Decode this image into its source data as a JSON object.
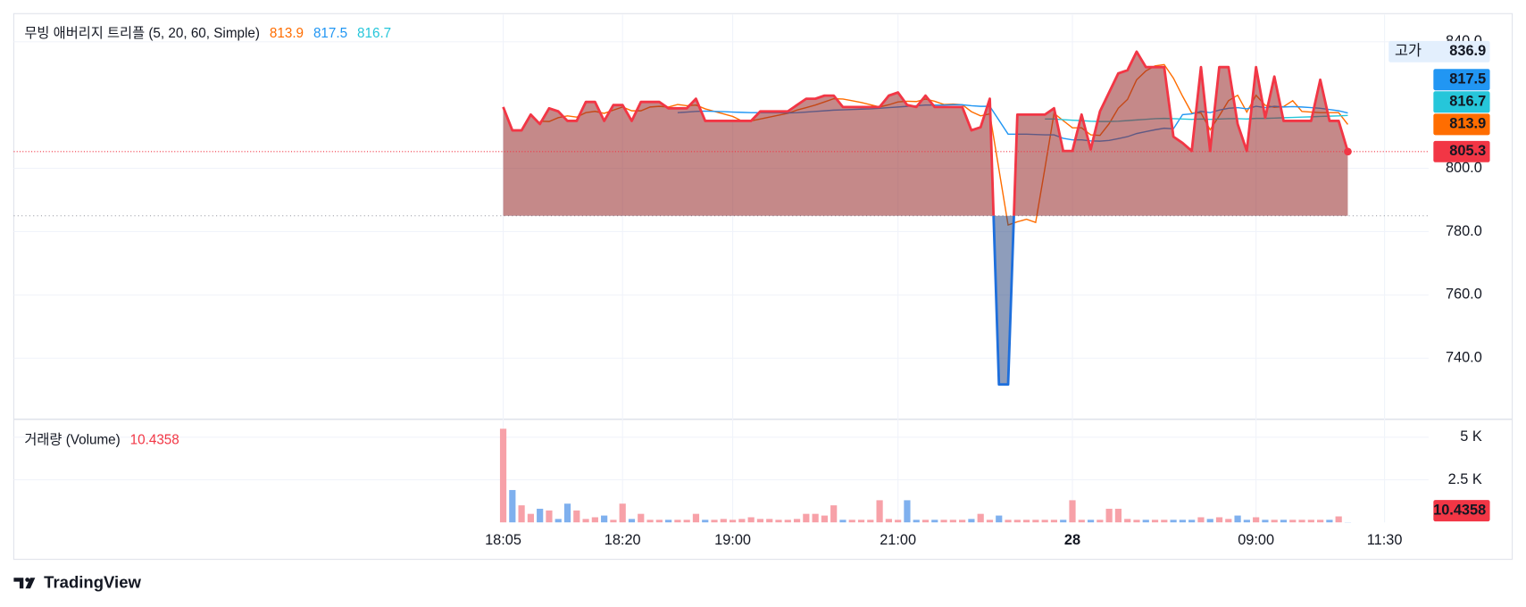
{
  "watermark": "TradingView",
  "chart_data": [
    {
      "type": "baseline",
      "title": "무빙 애버리지 트리플 (5, 20, 60, Simple)",
      "categories": [
        "18:05",
        null,
        null,
        null,
        null,
        null,
        null,
        null,
        null,
        null,
        null,
        null,
        null,
        "18:20",
        null,
        null,
        null,
        null,
        null,
        null,
        null,
        null,
        null,
        null,
        null,
        "19:00",
        null,
        null,
        null,
        null,
        null,
        null,
        null,
        null,
        null,
        null,
        null,
        null,
        null,
        null,
        null,
        null,
        null,
        "21:00",
        null,
        null,
        null,
        null,
        null,
        null,
        null,
        null,
        null,
        null,
        null,
        null,
        null,
        null,
        null,
        null,
        null,
        null,
        "28",
        null,
        null,
        null,
        null,
        null,
        null,
        null,
        null,
        null,
        null,
        null,
        null,
        null,
        null,
        null,
        null,
        null,
        null,
        null,
        "09:00",
        null,
        null,
        null,
        null,
        null,
        null,
        null,
        null,
        null,
        null,
        null,
        null,
        null,
        "11:30"
      ],
      "values": [
        819.4,
        812,
        812,
        817,
        814,
        819,
        818,
        815,
        815,
        821,
        821,
        815,
        820,
        820,
        815,
        821,
        821,
        821,
        819,
        819,
        819,
        822,
        815,
        815,
        815,
        815,
        815,
        815,
        818,
        818,
        818,
        818,
        820,
        822,
        822,
        823,
        823,
        819.4,
        819.4,
        819.4,
        819.4,
        819.4,
        823,
        824,
        820,
        819.4,
        823,
        819.4,
        819.4,
        819.4,
        819.4,
        812,
        813,
        822,
        731.7,
        731.7,
        817,
        817,
        817,
        817,
        819,
        805.5,
        805.5,
        817,
        806,
        818,
        824,
        830,
        831,
        836.9,
        832,
        832,
        832,
        810,
        808,
        805.5,
        832,
        805.5,
        832,
        832,
        814,
        805.5,
        832,
        816,
        829,
        815,
        815,
        815,
        815,
        828,
        815,
        815,
        805.3,
        null,
        null,
        null,
        null
      ],
      "baseline": 785,
      "top_line_color": "#f23645",
      "top_fill_color": "rgba(150,40,40,0.55)",
      "bottom_line_color": "#1e6fdc",
      "bottom_fill_color": "rgba(30,60,120,0.5)",
      "high_label": "고가",
      "moving_averages": [
        {
          "color": "#ff6d00",
          "values": [
            null,
            null,
            null,
            null,
            814.9,
            814.8,
            816,
            816.6,
            816.2,
            817.6,
            818,
            817.4,
            818.4,
            819.4,
            818.2,
            818.2,
            819.4,
            819.6,
            819.4,
            820.2,
            819.8,
            820,
            818.8,
            818,
            817.2,
            816.4,
            815,
            815,
            815.6,
            816.2,
            816.8,
            817.4,
            818.4,
            819.2,
            820,
            821,
            822,
            821.9,
            821.4,
            820.8,
            820.1,
            819.4,
            820.1,
            821,
            821.2,
            821.1,
            821.9,
            821.2,
            820.2,
            820.3,
            820.1,
            817.9,
            816.6,
            817.2,
            799.6,
            782.1,
            783.1,
            783.9,
            782.9,
            800,
            817.4,
            815.1,
            812.8,
            812.8,
            810.6,
            810.4,
            814.1,
            819,
            821.8,
            828,
            830.8,
            832.4,
            832.8,
            828.5,
            822.8,
            817.5,
            817.5,
            812.2,
            816.6,
            821.4,
            823.1,
            817.8,
            823.1,
            819.9,
            819.3,
            819.5,
            821.4,
            818,
            817.8,
            817.6,
            817.6,
            817.6,
            813.9,
            null,
            null,
            null,
            null
          ]
        },
        {
          "color": "#2196f3",
          "values": [
            null,
            null,
            null,
            null,
            null,
            null,
            null,
            null,
            null,
            null,
            null,
            null,
            null,
            null,
            null,
            null,
            null,
            null,
            null,
            817.6,
            817.8,
            818,
            818.1,
            818,
            817.9,
            817.8,
            817.7,
            817.6,
            817.6,
            817.6,
            817.6,
            817.5,
            817.6,
            817.8,
            818,
            818.2,
            818.4,
            818.5,
            818.6,
            818.7,
            818.8,
            819,
            819.2,
            819.4,
            819.6,
            819.8,
            820,
            820,
            820,
            820.1,
            820.1,
            819.8,
            819.6,
            819.6,
            815.2,
            810.8,
            810.8,
            810.8,
            810.7,
            810.6,
            810.6,
            809.5,
            809,
            809,
            808.7,
            808.6,
            808.8,
            809.4,
            810,
            811,
            811.6,
            812.2,
            812.7,
            812.5,
            817,
            817.2,
            818,
            817.6,
            818.4,
            819,
            819.2,
            818.8,
            819.6,
            819.2,
            819.6,
            819.4,
            819.5,
            819.4,
            819.2,
            819,
            818.6,
            818.2,
            817.5,
            null,
            null,
            null,
            null
          ]
        },
        {
          "color": "#26c6da",
          "values": [
            null,
            null,
            null,
            null,
            null,
            null,
            null,
            null,
            null,
            null,
            null,
            null,
            null,
            null,
            null,
            null,
            null,
            null,
            null,
            null,
            null,
            null,
            null,
            null,
            null,
            null,
            null,
            null,
            null,
            null,
            null,
            null,
            null,
            null,
            null,
            null,
            null,
            null,
            null,
            null,
            null,
            null,
            null,
            null,
            null,
            null,
            null,
            null,
            null,
            null,
            null,
            null,
            null,
            null,
            null,
            null,
            null,
            null,
            null,
            815.6,
            815.6,
            815.4,
            815.2,
            815.1,
            814.9,
            814.8,
            814.8,
            814.9,
            815.1,
            815.3,
            815.5,
            815.7,
            815.8,
            815.7,
            815.6,
            815.5,
            815.6,
            815.5,
            815.6,
            815.7,
            815.7,
            815.6,
            815.8,
            815.8,
            815.9,
            816,
            816.1,
            816.2,
            816.3,
            816.4,
            816.5,
            816.6,
            816.7,
            null,
            null,
            null,
            null
          ]
        }
      ],
      "ylim": [
        721,
        848.6
      ],
      "yticks": [
        {
          "value": 740,
          "label": "740.0"
        },
        {
          "value": 760,
          "label": "760.0"
        },
        {
          "value": 780,
          "label": "780.0"
        },
        {
          "value": 800,
          "label": "800.0"
        },
        {
          "value": 840,
          "label": "840.0"
        }
      ],
      "grid": true
    },
    {
      "type": "bar",
      "title": "거래량 (Volume)",
      "values": [
        5500,
        1900,
        1000,
        500,
        800,
        700,
        200,
        1100,
        700,
        200,
        300,
        400,
        150,
        1100,
        200,
        500,
        150,
        150,
        150,
        150,
        150,
        500,
        150,
        150,
        200,
        150,
        200,
        300,
        200,
        200,
        150,
        150,
        200,
        500,
        500,
        400,
        1000,
        150,
        150,
        150,
        150,
        1300,
        200,
        150,
        1300,
        150,
        150,
        150,
        150,
        150,
        150,
        200,
        500,
        150,
        400,
        150,
        150,
        150,
        150,
        150,
        150,
        150,
        1300,
        150,
        150,
        150,
        800,
        800,
        200,
        150,
        150,
        150,
        150,
        150,
        150,
        150,
        300,
        200,
        300,
        200,
        400,
        150,
        300,
        150,
        150,
        150,
        150,
        150,
        150,
        150,
        150,
        350,
        10.4358,
        null,
        null,
        null,
        null
      ],
      "up_color": "#f7a1a8",
      "down_color": "#7fb0ee",
      "value_color": "#f23645",
      "ylim": [
        0,
        6000
      ],
      "yticks": [
        {
          "value": 2500,
          "label": "2.5 K"
        },
        {
          "value": 5000,
          "label": "5 K"
        }
      ],
      "grid": true
    }
  ]
}
